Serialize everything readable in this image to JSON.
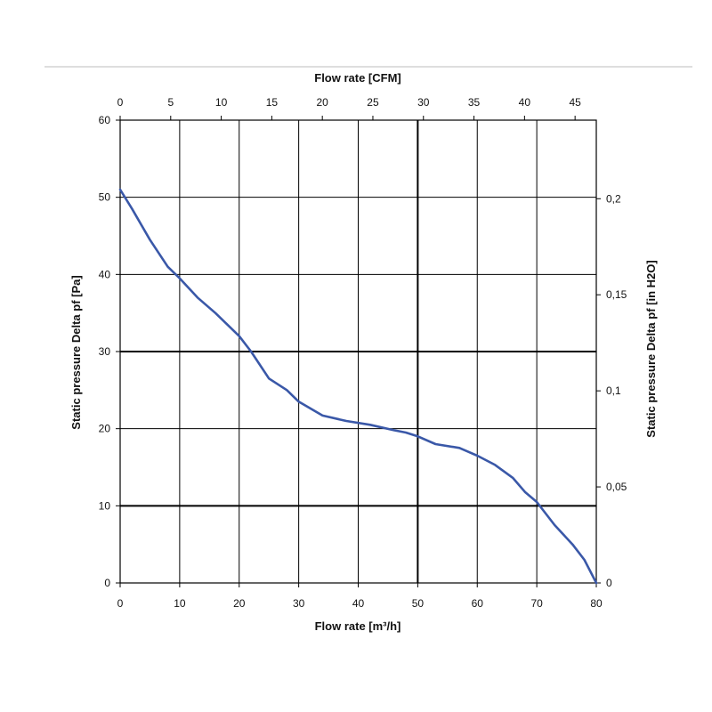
{
  "chart_data": {
    "type": "line",
    "xlabel": "Flow rate [m³/h]",
    "x2label": "Flow rate [CFM]",
    "ylabel": "Static pressure Delta pf [Pa]",
    "y2label": "Static pressure Delta pf [in H2O]",
    "xlim": [
      0,
      80
    ],
    "ylim": [
      0,
      60
    ],
    "x2lim": [
      0,
      47.1
    ],
    "y2lim": [
      0,
      0.2409
    ],
    "x_ticks": [
      "0",
      "10",
      "20",
      "30",
      "40",
      "50",
      "60",
      "70",
      "80"
    ],
    "y_ticks": [
      "0",
      "10",
      "20",
      "30",
      "40",
      "50",
      "60"
    ],
    "x2_ticks": [
      "0",
      "5",
      "10",
      "15",
      "20",
      "25",
      "30",
      "35",
      "40",
      "45"
    ],
    "y2_ticks": [
      "0",
      "0,05",
      "0,1",
      "0,15",
      "0,2"
    ],
    "grid": true,
    "thick_gridlines": {
      "x": [
        50
      ],
      "y": [
        10,
        30
      ]
    },
    "series": [
      {
        "color": "#3a58a8",
        "x": [
          0,
          2,
          5,
          8,
          10,
          13,
          16,
          20,
          22,
          25,
          28,
          30,
          34,
          38,
          42,
          46,
          48,
          50,
          53,
          57,
          60,
          63,
          66,
          68,
          70,
          73,
          76,
          78,
          80
        ],
        "y": [
          51,
          48.5,
          44.5,
          41,
          39.5,
          37,
          35,
          32,
          30,
          26.5,
          25,
          23.5,
          21.7,
          21,
          20.5,
          19.8,
          19.5,
          19,
          18,
          17.5,
          16.5,
          15.3,
          13.6,
          11.8,
          10.5,
          7.5,
          5,
          3,
          0
        ]
      }
    ]
  }
}
